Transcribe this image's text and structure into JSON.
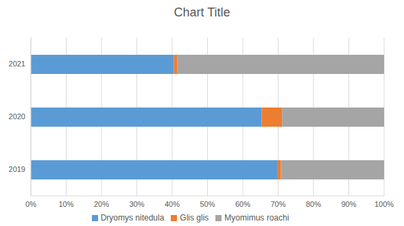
{
  "chart_data": {
    "type": "bar",
    "title": "Chart Title",
    "orientation": "horizontal",
    "stacked": true,
    "grid": true,
    "legend": "bottom",
    "categories": [
      "2019",
      "2020",
      "2021"
    ],
    "series": [
      {
        "name": "Dryomys nitedula",
        "color": "#5b9bd5",
        "values": [
          69.7,
          65.3,
          40.5
        ]
      },
      {
        "name": "Glis glis",
        "color": "#ed7d31",
        "values": [
          1.1,
          5.8,
          1.0
        ]
      },
      {
        "name": "Myomimus roachi",
        "color": "#a5a5a5",
        "values": [
          29.2,
          28.9,
          58.5
        ]
      }
    ],
    "xlim": [
      0,
      100
    ],
    "xticks": [
      {
        "value": 0,
        "label": "0%"
      },
      {
        "value": 10,
        "label": "10%"
      },
      {
        "value": 20,
        "label": "20%"
      },
      {
        "value": 30,
        "label": "30%"
      },
      {
        "value": 40,
        "label": "40%"
      },
      {
        "value": 50,
        "label": "50%"
      },
      {
        "value": 60,
        "label": "60%"
      },
      {
        "value": 70,
        "label": "70%"
      },
      {
        "value": 80,
        "label": "80%"
      },
      {
        "value": 90,
        "label": "90%"
      },
      {
        "value": 100,
        "label": "100%"
      }
    ]
  }
}
